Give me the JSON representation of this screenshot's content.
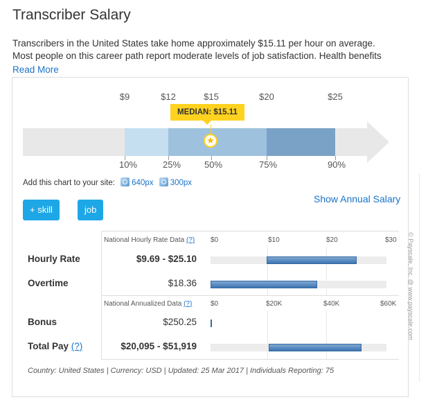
{
  "page": {
    "title": "Transcriber Salary",
    "description_line1": "Transcribers in the United States take home approximately $15.11 per hour on average.",
    "description_line2": "Most people on this career path report moderate levels of job satisfaction. Health benefits",
    "read_more": "Read More"
  },
  "range_chart": {
    "top_labels": [
      "$9",
      "$12",
      "$15",
      "$20",
      "$25"
    ],
    "bottom_labels": [
      "10%",
      "25%",
      "50%",
      "75%",
      "90%"
    ],
    "median_label": "MEDIAN: $15.11",
    "colors": {
      "track": "#e8e8e8",
      "band_10_25": "#c5dff0",
      "band_25_75": "#9ec2dd",
      "band_75_90": "#7aa2c6",
      "median": "#ffd21f"
    },
    "icons": {
      "median_marker": "star-icon"
    }
  },
  "embed": {
    "prompt": "Add this chart to your site:",
    "link_640": "640px",
    "link_300": "300px",
    "icon": "share-icon"
  },
  "buttons": {
    "add_skill": "+ skill",
    "job": "job"
  },
  "show_annual": "Show Annual Salary",
  "hourly_section": {
    "caption": "National Hourly Rate Data",
    "help": "(?)",
    "ticks": [
      "$0",
      "$10",
      "$20",
      "$30"
    ],
    "rows": [
      {
        "label": "Hourly Rate",
        "value": "$9.69 - $25.10",
        "low": 9.69,
        "high": 25.1
      },
      {
        "label": "Overtime",
        "value": "$18.36",
        "low": 0,
        "high": 18.36
      }
    ]
  },
  "annual_section": {
    "caption": "National Annualized Data",
    "help": "(?)",
    "ticks": [
      "$0",
      "$20K",
      "$40K",
      "$60K"
    ],
    "rows": [
      {
        "label": "Bonus",
        "help": "",
        "value": "$250.25",
        "low": 0,
        "high": 250.25
      },
      {
        "label": "Total Pay",
        "help": "(?)",
        "value": "$20,095 - $51,919",
        "low": 20095,
        "high": 51919
      }
    ]
  },
  "footer": "Country: United States | Currency: USD | Updated: 25 Mar 2017 | Individuals Reporting: 75",
  "copyright": "© Payscale, Inc. @ www.payscale.com",
  "accent_color": "#1ea7e6",
  "link_color": "#1a73c9"
}
